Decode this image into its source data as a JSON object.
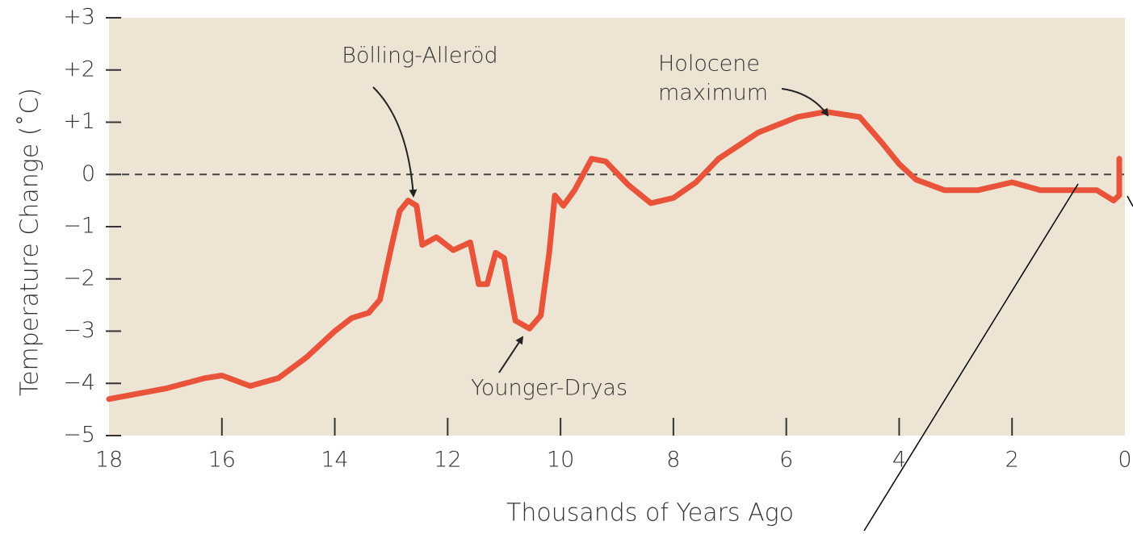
{
  "chart_data": {
    "type": "line",
    "xlabel": "Thousands of Years Ago",
    "ylabel": "Temperature Change (˚C)",
    "x": [
      18,
      17,
      16.3,
      16,
      15.5,
      15,
      14.5,
      14,
      13.7,
      13.4,
      13.2,
      13.0,
      12.85,
      12.7,
      12.55,
      12.45,
      12.2,
      11.9,
      11.6,
      11.45,
      11.3,
      11.15,
      11.0,
      10.8,
      10.55,
      10.35,
      10.2,
      10.1,
      9.95,
      9.75,
      9.45,
      9.2,
      8.8,
      8.4,
      8.0,
      7.6,
      7.2,
      6.5,
      5.8,
      5.3,
      4.7,
      4.3,
      4.0,
      3.7,
      3.2,
      2.6,
      2.0,
      1.5,
      0.5,
      0.2,
      0.1,
      0.1
    ],
    "series": [
      {
        "color": "#e8533a",
        "values": [
          -4.3,
          -4.1,
          -3.9,
          -3.85,
          -4.05,
          -3.9,
          -3.5,
          -3.0,
          -2.75,
          -2.65,
          -2.4,
          -1.4,
          -0.7,
          -0.5,
          -0.6,
          -1.35,
          -1.2,
          -1.45,
          -1.3,
          -2.1,
          -2.1,
          -1.5,
          -1.6,
          -2.8,
          -2.95,
          -2.7,
          -1.5,
          -0.4,
          -0.6,
          -0.3,
          0.3,
          0.25,
          -0.2,
          -0.55,
          -0.45,
          -0.15,
          0.3,
          0.8,
          1.1,
          1.2,
          1.1,
          0.6,
          0.2,
          -0.1,
          -0.3,
          -0.3,
          -0.15,
          -0.3,
          -0.3,
          -0.5,
          -0.4,
          0.3
        ]
      }
    ],
    "xlim": [
      18,
      0
    ],
    "xticks": [
      18,
      16,
      14,
      12,
      10,
      8,
      6,
      4,
      2,
      0
    ],
    "ylim": [
      -5,
      3
    ],
    "yticks": [
      {
        "value": 3,
        "label": "+3"
      },
      {
        "value": 2,
        "label": "+2"
      },
      {
        "value": 1,
        "label": "+1"
      },
      0,
      {
        "value": -1,
        "label": "−1"
      },
      {
        "value": -2,
        "label": "−2"
      },
      {
        "value": -3,
        "label": "−3"
      },
      {
        "value": -4,
        "label": "−4"
      },
      {
        "value": -5,
        "label": "−5"
      }
    ],
    "zero_line": true,
    "background": "#ede4d4",
    "annotations": [
      [
        "Bölling-Alleröd"
      ],
      [
        "Holocene",
        "maximum"
      ],
      [
        "Younger-Dryas"
      ]
    ]
  }
}
